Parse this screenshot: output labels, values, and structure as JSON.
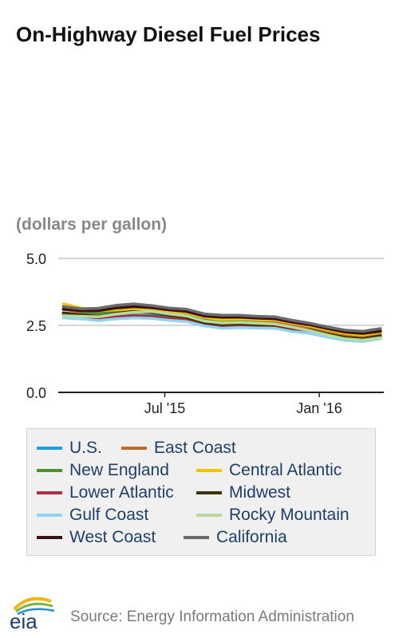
{
  "chart_data": {
    "type": "line",
    "title": "On-Highway Diesel Fuel Prices",
    "units": "(dollars per gallon)",
    "ylim": [
      0,
      5
    ],
    "y_ticks": [
      "5.0",
      "2.5",
      "0.0"
    ],
    "x_ticks": [
      "Jul '15",
      "Jan '16"
    ],
    "grid": true,
    "legend_position": "bottom",
    "x": [
      "2015-03-02",
      "2015-03-23",
      "2015-04-13",
      "2015-05-04",
      "2015-05-25",
      "2015-06-15",
      "2015-07-06",
      "2015-07-27",
      "2015-08-17",
      "2015-09-07",
      "2015-09-28",
      "2015-10-19",
      "2015-11-09",
      "2015-11-30",
      "2015-12-21",
      "2016-01-11",
      "2016-02-01",
      "2016-02-22",
      "2016-03-14"
    ],
    "series": [
      {
        "name": "U.S.",
        "color": "#1a9fd9",
        "values": [
          2.9,
          2.87,
          2.8,
          2.85,
          2.89,
          2.87,
          2.8,
          2.76,
          2.58,
          2.49,
          2.51,
          2.48,
          2.48,
          2.37,
          2.3,
          2.16,
          2.03,
          1.99,
          2.09
        ]
      },
      {
        "name": "East Coast",
        "color": "#c0692a",
        "values": [
          3.1,
          3.0,
          2.9,
          2.96,
          3.0,
          2.98,
          2.91,
          2.86,
          2.7,
          2.62,
          2.65,
          2.62,
          2.62,
          2.5,
          2.42,
          2.28,
          2.15,
          2.1,
          2.2
        ]
      },
      {
        "name": "New England",
        "color": "#4f8f2f",
        "values": [
          3.2,
          3.02,
          2.94,
          3.04,
          3.08,
          3.05,
          2.97,
          2.93,
          2.78,
          2.69,
          2.71,
          2.69,
          2.7,
          2.6,
          2.52,
          2.38,
          2.27,
          2.22,
          2.3
        ]
      },
      {
        "name": "Central Atlantic",
        "color": "#f5c400",
        "values": [
          3.3,
          3.15,
          3.05,
          3.08,
          3.12,
          3.1,
          3.02,
          2.97,
          2.8,
          2.71,
          2.74,
          2.71,
          2.7,
          2.58,
          2.48,
          2.33,
          2.2,
          2.14,
          2.24
        ]
      },
      {
        "name": "Lower Atlantic",
        "color": "#a8323f",
        "values": [
          2.88,
          2.84,
          2.76,
          2.82,
          2.86,
          2.84,
          2.77,
          2.72,
          2.56,
          2.47,
          2.5,
          2.47,
          2.48,
          2.36,
          2.29,
          2.15,
          2.03,
          1.99,
          2.1
        ]
      },
      {
        "name": "Midwest",
        "color": "#3a3300",
        "values": [
          2.97,
          2.9,
          2.83,
          2.95,
          3.02,
          2.98,
          2.88,
          2.8,
          2.6,
          2.54,
          2.56,
          2.53,
          2.52,
          2.4,
          2.32,
          2.18,
          2.05,
          2.0,
          2.11
        ]
      },
      {
        "name": "Gulf Coast",
        "color": "#8fd4f2",
        "values": [
          2.78,
          2.74,
          2.68,
          2.74,
          2.78,
          2.76,
          2.69,
          2.64,
          2.48,
          2.39,
          2.42,
          2.4,
          2.39,
          2.27,
          2.2,
          2.06,
          1.94,
          1.9,
          2.0
        ]
      },
      {
        "name": "Rocky Mountain",
        "color": "#b9d9a3",
        "values": [
          2.86,
          2.84,
          2.82,
          2.92,
          2.99,
          3.02,
          2.93,
          2.85,
          2.66,
          2.59,
          2.61,
          2.58,
          2.55,
          2.43,
          2.3,
          2.14,
          2.0,
          1.95,
          2.04
        ]
      },
      {
        "name": "West Coast",
        "color": "#3a0f14",
        "values": [
          3.1,
          3.05,
          3.05,
          3.15,
          3.2,
          3.16,
          3.08,
          3.02,
          2.85,
          2.8,
          2.81,
          2.77,
          2.75,
          2.62,
          2.52,
          2.38,
          2.25,
          2.2,
          2.28
        ]
      },
      {
        "name": "California",
        "color": "#6b6b6b",
        "values": [
          3.2,
          3.12,
          3.14,
          3.25,
          3.3,
          3.24,
          3.15,
          3.1,
          2.93,
          2.88,
          2.88,
          2.84,
          2.82,
          2.69,
          2.58,
          2.44,
          2.32,
          2.28,
          2.38
        ]
      }
    ]
  },
  "footer": {
    "logo_text": "eia",
    "source": "Source: Energy Information Administration"
  }
}
